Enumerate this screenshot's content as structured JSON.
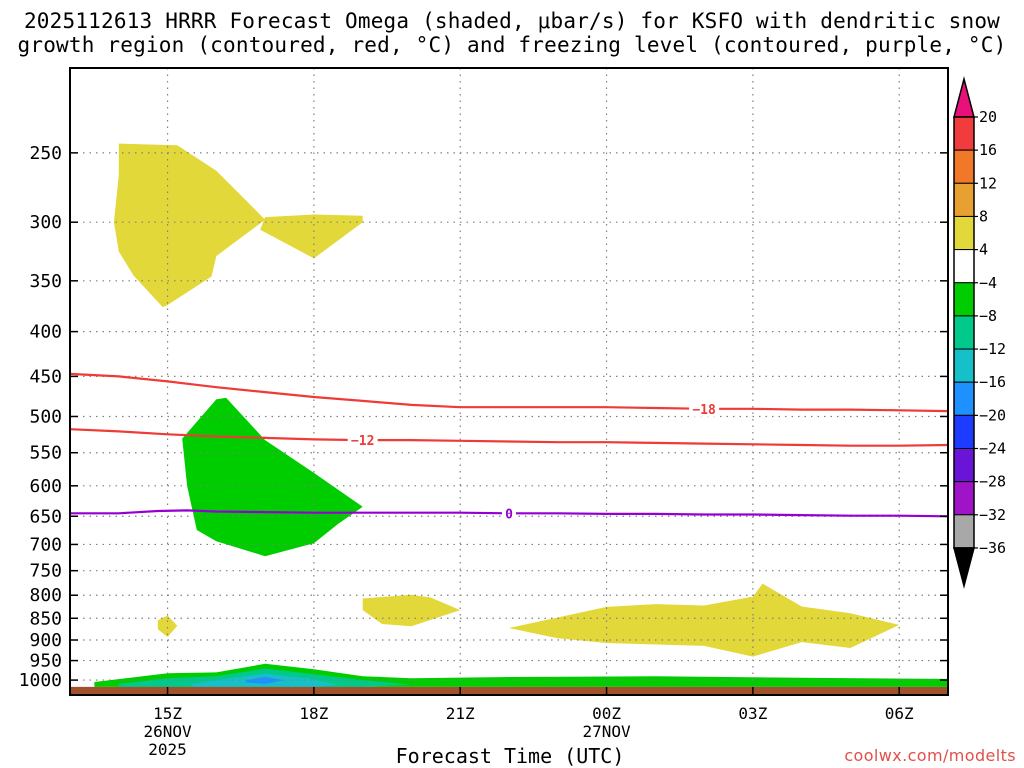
{
  "title_lines": [
    "2025112613 HRRR Forecast Omega (shaded, μbar/s) for KSFO with dendritic snow",
    "growth region (contoured, red, °C) and freezing level (contoured, purple, °C)"
  ],
  "credit": "coolwx.com/modelts",
  "colors": {
    "frame": "#000000",
    "grid": "#808080",
    "ground": "#a0522d",
    "dgz_contour": "#ee3b36",
    "freezing_contour": "#9400d3",
    "omega_pos_4_8": "#e3d83a",
    "omega_neg_4_8": "#00cd00",
    "omega_neg_8_12": "#00c98a",
    "omega_neg_12_16": "#16c0c8",
    "omega_neg_16_20": "#1e90ff"
  },
  "chart_data": {
    "type": "time-height cross-section",
    "xlabel": "Forecast Time (UTC)",
    "ylabel": "",
    "y_scale": "log-pressure (inverted)",
    "x_range_hours_utc": [
      13.0,
      31.0
    ],
    "y_range_mb": [
      1040,
      200
    ],
    "x_ticks": [
      {
        "hour": 15,
        "label": "15Z",
        "sub1": "26NOV",
        "sub2": "2025"
      },
      {
        "hour": 18,
        "label": "18Z",
        "sub1": "",
        "sub2": ""
      },
      {
        "hour": 21,
        "label": "21Z",
        "sub1": "",
        "sub2": ""
      },
      {
        "hour": 24,
        "label": "00Z",
        "sub1": "27NOV",
        "sub2": ""
      },
      {
        "hour": 27,
        "label": "03Z",
        "sub1": "",
        "sub2": ""
      },
      {
        "hour": 30,
        "label": "06Z",
        "sub1": "",
        "sub2": ""
      }
    ],
    "y_ticks": [
      250,
      300,
      350,
      400,
      450,
      500,
      550,
      600,
      650,
      700,
      750,
      800,
      850,
      900,
      950,
      1000
    ],
    "ground_mb": [
      1018,
      1040
    ],
    "grid": true,
    "colorbar": {
      "labels": [
        "20",
        "16",
        "12",
        "8",
        "4",
        "−4",
        "−8",
        "−12",
        "−16",
        "−20",
        "−24",
        "−28",
        "−32",
        "−36"
      ],
      "values": [
        20,
        16,
        12,
        8,
        4,
        -4,
        -8,
        -12,
        -16,
        -20,
        -24,
        -28,
        -32,
        -36
      ],
      "bins": [
        {
          "from": 20,
          "to": 24,
          "color": "#e8107a",
          "arrow": "up"
        },
        {
          "from": 16,
          "to": 20,
          "color": "#f03c3c"
        },
        {
          "from": 12,
          "to": 16,
          "color": "#f07828"
        },
        {
          "from": 8,
          "to": 12,
          "color": "#e8a030"
        },
        {
          "from": 4,
          "to": 8,
          "color": "#e3d83a"
        },
        {
          "from": -4,
          "to": 4,
          "color": "#ffffff"
        },
        {
          "from": -8,
          "to": -4,
          "color": "#00cd00"
        },
        {
          "from": -12,
          "to": -8,
          "color": "#00c98a"
        },
        {
          "from": -16,
          "to": -12,
          "color": "#16c0c8"
        },
        {
          "from": -20,
          "to": -16,
          "color": "#1e90ff"
        },
        {
          "from": -24,
          "to": -20,
          "color": "#1e3cff"
        },
        {
          "from": -28,
          "to": -24,
          "color": "#6a14d8"
        },
        {
          "from": -32,
          "to": -28,
          "color": "#a014c8"
        },
        {
          "from": -36,
          "to": -32,
          "color": "#a8a8a8"
        },
        {
          "from": -40,
          "to": -36,
          "color": "#000000",
          "arrow": "down"
        }
      ]
    },
    "contours": [
      {
        "group": "dgz",
        "label": "−18",
        "label_at": [
          26.0,
          490
        ],
        "points": [
          [
            13.0,
            447
          ],
          [
            14.0,
            450
          ],
          [
            15.0,
            456
          ],
          [
            16.0,
            463
          ],
          [
            17.0,
            469
          ],
          [
            18.0,
            475
          ],
          [
            19.0,
            480
          ],
          [
            20.0,
            485
          ],
          [
            21.0,
            488
          ],
          [
            22.0,
            488
          ],
          [
            23.0,
            488
          ],
          [
            24.0,
            488
          ],
          [
            25.0,
            489
          ],
          [
            26.0,
            490
          ],
          [
            27.0,
            490
          ],
          [
            28.0,
            491
          ],
          [
            29.0,
            491
          ],
          [
            30.0,
            492
          ],
          [
            31.0,
            493
          ]
        ]
      },
      {
        "group": "dgz",
        "label": "−12",
        "label_at": [
          19.0,
          532
        ],
        "points": [
          [
            13.0,
            517
          ],
          [
            14.0,
            520
          ],
          [
            15.0,
            524
          ],
          [
            16.0,
            527
          ],
          [
            17.0,
            529
          ],
          [
            18.0,
            531
          ],
          [
            19.0,
            532
          ],
          [
            20.0,
            532
          ],
          [
            21.0,
            533
          ],
          [
            22.0,
            534
          ],
          [
            23.0,
            535
          ],
          [
            24.0,
            535
          ],
          [
            25.0,
            536
          ],
          [
            26.0,
            537
          ],
          [
            27.0,
            538
          ],
          [
            28.0,
            539
          ],
          [
            29.0,
            540
          ],
          [
            30.0,
            540
          ],
          [
            31.0,
            539
          ]
        ]
      },
      {
        "group": "freezing",
        "label": "0",
        "label_at": [
          22.0,
          645
        ],
        "points": [
          [
            13.0,
            645
          ],
          [
            14.0,
            645
          ],
          [
            14.8,
            641
          ],
          [
            15.4,
            640
          ],
          [
            16.0,
            642
          ],
          [
            17.0,
            643
          ],
          [
            18.0,
            644
          ],
          [
            19.0,
            644
          ],
          [
            20.0,
            644
          ],
          [
            21.0,
            644
          ],
          [
            22.0,
            645
          ],
          [
            23.0,
            645
          ],
          [
            24.0,
            646
          ],
          [
            25.0,
            646
          ],
          [
            26.0,
            647
          ],
          [
            27.0,
            647
          ],
          [
            28.0,
            648
          ],
          [
            29.0,
            649
          ],
          [
            30.0,
            649
          ],
          [
            31.0,
            650
          ]
        ]
      }
    ],
    "omega_regions": [
      {
        "level": "4..8",
        "color_key": "omega_pos_4_8",
        "polygon": [
          [
            14.0,
            244
          ],
          [
            15.2,
            245
          ],
          [
            16.0,
            262
          ],
          [
            17.0,
            298
          ],
          [
            16.0,
            328
          ],
          [
            15.9,
            346
          ],
          [
            15.0,
            373
          ],
          [
            14.9,
            375
          ],
          [
            14.3,
            345
          ],
          [
            14.0,
            324
          ],
          [
            13.9,
            300
          ],
          [
            14.0,
            265
          ]
        ]
      },
      {
        "level": "4..8",
        "color_key": "omega_pos_4_8",
        "polygon": [
          [
            17.0,
            296
          ],
          [
            18.0,
            294
          ],
          [
            19.0,
            295
          ],
          [
            19.0,
            300
          ],
          [
            18.0,
            330
          ],
          [
            16.9,
            306
          ]
        ]
      },
      {
        "level": "4..8",
        "color_key": "omega_pos_4_8",
        "polygon": [
          [
            19.0,
            807
          ],
          [
            20.0,
            799
          ],
          [
            20.4,
            805
          ],
          [
            21.0,
            832
          ],
          [
            20.0,
            868
          ],
          [
            19.4,
            863
          ],
          [
            19.0,
            832
          ]
        ]
      },
      {
        "level": "4..8",
        "color_key": "omega_pos_4_8",
        "polygon": [
          [
            14.8,
            854
          ],
          [
            15.0,
            844
          ],
          [
            15.2,
            867
          ],
          [
            15.0,
            893
          ],
          [
            14.8,
            875
          ]
        ]
      },
      {
        "level": "4..8",
        "color_key": "omega_pos_4_8",
        "polygon": [
          [
            22.0,
            872
          ],
          [
            24.0,
            825
          ],
          [
            25.0,
            819
          ],
          [
            26.0,
            822
          ],
          [
            27.0,
            803
          ],
          [
            27.2,
            776
          ],
          [
            28.0,
            824
          ],
          [
            29.0,
            839
          ],
          [
            30.0,
            865
          ],
          [
            29.0,
            919
          ],
          [
            28.0,
            905
          ],
          [
            27.0,
            940
          ],
          [
            26.0,
            914
          ],
          [
            24.0,
            907
          ],
          [
            23.0,
            896
          ]
        ]
      },
      {
        "level": "-4..-8",
        "color_key": "omega_neg_4_8",
        "polygon": [
          [
            15.3,
            530
          ],
          [
            16.0,
            478
          ],
          [
            16.2,
            476
          ],
          [
            17.0,
            532
          ],
          [
            18.0,
            580
          ],
          [
            19.0,
            634
          ],
          [
            18.5,
            663
          ],
          [
            18.0,
            698
          ],
          [
            17.0,
            722
          ],
          [
            16.0,
            694
          ],
          [
            15.6,
            674
          ],
          [
            15.4,
            600
          ]
        ]
      },
      {
        "level": "-4..-8",
        "color_key": "omega_neg_4_8",
        "polygon": [
          [
            13.5,
            1005
          ],
          [
            15.0,
            982
          ],
          [
            16.0,
            980
          ],
          [
            17.0,
            958
          ],
          [
            18.0,
            972
          ],
          [
            19.0,
            990
          ],
          [
            20.0,
            995
          ],
          [
            22.0,
            992
          ],
          [
            25.0,
            990
          ],
          [
            28.0,
            994
          ],
          [
            31.0,
            997
          ],
          [
            31.0,
            1018
          ],
          [
            13.5,
            1018
          ]
        ]
      },
      {
        "level": "-8..-12",
        "color_key": "omega_neg_8_12",
        "polygon": [
          [
            14.0,
            1010
          ],
          [
            15.0,
            995
          ],
          [
            16.0,
            990
          ],
          [
            17.0,
            970
          ],
          [
            18.0,
            985
          ],
          [
            19.0,
            1000
          ],
          [
            20.0,
            1012
          ],
          [
            19.0,
            1018
          ],
          [
            14.0,
            1018
          ]
        ]
      },
      {
        "level": "-12..-16",
        "color_key": "omega_neg_12_16",
        "polygon": [
          [
            15.5,
            1010
          ],
          [
            16.0,
            1000
          ],
          [
            17.0,
            983
          ],
          [
            18.0,
            998
          ],
          [
            18.5,
            1013
          ],
          [
            18.0,
            1018
          ],
          [
            15.5,
            1018
          ]
        ]
      },
      {
        "level": "-16..-20",
        "color_key": "omega_neg_16_20",
        "polygon": [
          [
            16.6,
            1000
          ],
          [
            17.0,
            992
          ],
          [
            17.4,
            1000
          ],
          [
            17.0,
            1010
          ],
          [
            16.6,
            1006
          ]
        ]
      }
    ]
  }
}
